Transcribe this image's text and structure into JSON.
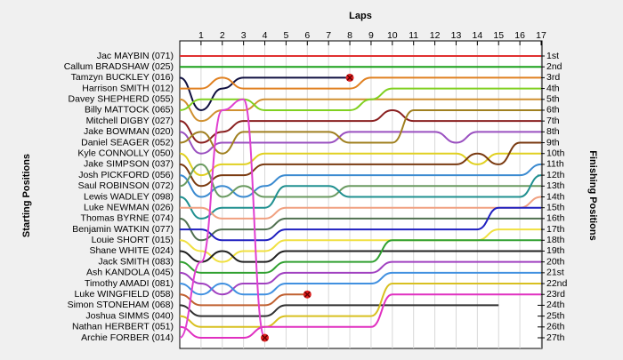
{
  "chart_data": {
    "type": "lap",
    "xlabel": "Laps",
    "ylabel": "Starting Positions",
    "y2label": "Finishing Positions",
    "x": [
      0,
      1,
      2,
      3,
      4,
      5,
      6,
      7,
      8,
      9,
      10,
      11,
      12,
      13,
      14,
      15,
      16,
      17
    ],
    "xlim": [
      0,
      17
    ],
    "xticks": [
      1,
      2,
      3,
      4,
      5,
      6,
      7,
      8,
      9,
      10,
      11,
      12,
      13,
      14,
      15,
      16,
      17
    ],
    "ylim": [
      1,
      27
    ],
    "yticks": [
      {
        "value": 1,
        "label": "1st"
      },
      {
        "value": 2,
        "label": "2nd"
      },
      {
        "value": 3,
        "label": "3rd"
      },
      {
        "value": 4,
        "label": "4th"
      },
      {
        "value": 5,
        "label": "5th"
      },
      {
        "value": 6,
        "label": "6th"
      },
      {
        "value": 7,
        "label": "7th"
      },
      {
        "value": 8,
        "label": "8th"
      },
      {
        "value": 9,
        "label": "9th"
      },
      {
        "value": 10,
        "label": "10th"
      },
      {
        "value": 11,
        "label": "11th"
      },
      {
        "value": 12,
        "label": "12th"
      },
      {
        "value": 13,
        "label": "13th"
      },
      {
        "value": 14,
        "label": "14th"
      },
      {
        "value": 15,
        "label": "15th"
      },
      {
        "value": 16,
        "label": "16th"
      },
      {
        "value": 17,
        "label": "17th"
      },
      {
        "value": 18,
        "label": "18th"
      },
      {
        "value": 19,
        "label": "19th"
      },
      {
        "value": 20,
        "label": "20th"
      },
      {
        "value": 21,
        "label": "21st"
      },
      {
        "value": 22,
        "label": "22nd"
      },
      {
        "value": 23,
        "label": "23rd"
      },
      {
        "value": 24,
        "label": "24th"
      },
      {
        "value": 25,
        "label": "25th"
      },
      {
        "value": 26,
        "label": "26th"
      },
      {
        "value": 27,
        "label": "27th"
      }
    ],
    "grid": true,
    "series": [
      {
        "name": "Jac MAYBIN (071)",
        "color": "#e03030",
        "values": [
          1,
          1,
          1,
          1,
          1,
          1,
          1,
          1,
          1,
          1,
          1,
          1,
          1,
          1,
          1,
          1,
          1,
          1
        ]
      },
      {
        "name": "Callum BRADSHAW (025)",
        "color": "#1aa01a",
        "values": [
          2,
          2,
          2,
          2,
          2,
          2,
          2,
          2,
          2,
          2,
          2,
          2,
          2,
          2,
          2,
          2,
          2,
          2
        ]
      },
      {
        "name": "Tamzyn BUCKLEY (016)",
        "color": "#101040",
        "retired": true,
        "values": [
          3,
          6,
          4,
          3,
          3,
          3,
          3,
          3,
          3,
          null,
          null,
          null,
          null,
          null,
          null,
          null,
          null,
          null
        ]
      },
      {
        "name": "Harrison SMITH (012)",
        "color": "#e08020",
        "values": [
          4,
          4,
          3,
          4,
          4,
          4,
          4,
          4,
          4,
          3,
          3,
          3,
          3,
          3,
          3,
          3,
          3,
          3
        ]
      },
      {
        "name": "Davey SHEPHERD (055)",
        "color": "#d09030",
        "values": [
          5,
          7,
          6,
          6,
          5,
          5,
          5,
          5,
          5,
          5,
          5,
          5,
          5,
          5,
          5,
          5,
          5,
          5
        ]
      },
      {
        "name": "Billy MATTOCK (065)",
        "color": "#80d020",
        "values": [
          6,
          5,
          5,
          5,
          6,
          6,
          6,
          6,
          6,
          5,
          4,
          4,
          4,
          4,
          4,
          4,
          4,
          4
        ]
      },
      {
        "name": "Mitchell DIGBY (027)",
        "color": "#8a2020",
        "values": [
          7,
          9,
          8,
          7,
          7,
          7,
          7,
          7,
          7,
          7,
          6,
          7,
          7,
          7,
          7,
          7,
          7,
          7
        ]
      },
      {
        "name": "Jake BOWMAN (020)",
        "color": "#9a50c0",
        "values": [
          8,
          10,
          9,
          9,
          9,
          9,
          9,
          9,
          8,
          8,
          8,
          8,
          8,
          9,
          8,
          8,
          8,
          8
        ]
      },
      {
        "name": "Daniel SEAGER (052)",
        "color": "#a08020",
        "values": [
          9,
          8,
          10,
          8,
          8,
          8,
          8,
          8,
          9,
          9,
          9,
          6,
          6,
          6,
          6,
          6,
          6,
          6
        ]
      },
      {
        "name": "Kyle CONNOLLY (050)",
        "color": "#e0d020",
        "values": [
          10,
          12,
          11,
          11,
          10,
          10,
          10,
          10,
          10,
          10,
          10,
          10,
          10,
          10,
          11,
          10,
          10,
          10
        ]
      },
      {
        "name": "Jake SIMPSON (037)",
        "color": "#7a3a10",
        "values": [
          11,
          13,
          12,
          12,
          11,
          11,
          11,
          11,
          11,
          11,
          11,
          11,
          11,
          11,
          10,
          11,
          9,
          9
        ]
      },
      {
        "name": "Josh PICKFORD (056)",
        "color": "#3a8ad0",
        "values": [
          12,
          14,
          13,
          14,
          13,
          12,
          12,
          12,
          12,
          12,
          12,
          12,
          12,
          12,
          12,
          12,
          12,
          11
        ]
      },
      {
        "name": "Saul ROBINSON (072)",
        "color": "#6a9a60",
        "values": [
          13,
          11,
          14,
          13,
          14,
          14,
          14,
          14,
          13,
          13,
          13,
          13,
          13,
          13,
          13,
          13,
          13,
          13
        ]
      },
      {
        "name": "Lewis WADLEY (098)",
        "color": "#209090",
        "values": [
          14,
          16,
          15,
          15,
          15,
          13,
          13,
          13,
          14,
          14,
          14,
          14,
          14,
          14,
          14,
          14,
          14,
          12
        ]
      },
      {
        "name": "Luke NEWMAN (026)",
        "color": "#f0a080",
        "values": [
          15,
          15,
          16,
          16,
          16,
          15,
          15,
          15,
          15,
          15,
          15,
          15,
          15,
          15,
          15,
          15,
          15,
          14
        ]
      },
      {
        "name": "Thomas BYRNE (074)",
        "color": "#507050",
        "values": [
          16,
          18,
          17,
          17,
          17,
          16,
          16,
          16,
          16,
          16,
          16,
          16,
          16,
          16,
          16,
          16,
          16,
          16
        ]
      },
      {
        "name": "Benjamin WATKIN (077)",
        "color": "#2020c0",
        "values": [
          17,
          17,
          18,
          18,
          18,
          17,
          17,
          17,
          17,
          17,
          17,
          17,
          17,
          17,
          17,
          15,
          15,
          15
        ]
      },
      {
        "name": "Louie SHORT (015)",
        "color": "#f0e040",
        "values": [
          18,
          19,
          20,
          19,
          19,
          18,
          18,
          18,
          18,
          18,
          18,
          18,
          18,
          18,
          18,
          17,
          17,
          17
        ]
      },
      {
        "name": "Shane WHITE (024)",
        "color": "#202020",
        "values": [
          19,
          20,
          19,
          20,
          20,
          19,
          19,
          19,
          19,
          19,
          19,
          19,
          19,
          19,
          19,
          19,
          19,
          19
        ]
      },
      {
        "name": "Jack SMITH (083)",
        "color": "#30a030",
        "values": [
          20,
          21,
          21,
          21,
          21,
          20,
          20,
          20,
          20,
          20,
          18,
          18,
          18,
          18,
          18,
          18,
          18,
          18
        ]
      },
      {
        "name": "Ash KANDOLA (045)",
        "color": "#a040c0",
        "values": [
          21,
          22,
          23,
          22,
          22,
          21,
          21,
          21,
          21,
          21,
          20,
          20,
          20,
          20,
          20,
          20,
          20,
          20
        ]
      },
      {
        "name": "Timothy AMADI (081)",
        "color": "#4090e0",
        "values": [
          22,
          23,
          22,
          23,
          23,
          22,
          22,
          22,
          22,
          22,
          21,
          21,
          21,
          21,
          21,
          21,
          21,
          21
        ]
      },
      {
        "name": "Luke WINGFIELD (058)",
        "color": "#c06030",
        "retired": true,
        "values": [
          23,
          24,
          24,
          24,
          24,
          23,
          23,
          null,
          null,
          null,
          null,
          null,
          null,
          null,
          null,
          null,
          null,
          null
        ]
      },
      {
        "name": "Simon STONEHAM (068)",
        "color": "#303030",
        "values": [
          24,
          25,
          25,
          25,
          25,
          24,
          24,
          24,
          24,
          24,
          24,
          24,
          24,
          24,
          24,
          24,
          null,
          null
        ]
      },
      {
        "name": "Joshua SIMMS (040)",
        "color": "#d8c020",
        "values": [
          25,
          26,
          26,
          26,
          26,
          25,
          25,
          25,
          25,
          25,
          22,
          22,
          22,
          22,
          22,
          22,
          22,
          22
        ]
      },
      {
        "name": "Nathan HERBERT (051)",
        "color": "#e030c0",
        "values": [
          26,
          27,
          27,
          27,
          26,
          26,
          26,
          26,
          26,
          26,
          23,
          23,
          23,
          23,
          23,
          23,
          23,
          23
        ]
      },
      {
        "name": "Archie FORBER (014)",
        "color": "#e040d0",
        "retired": true,
        "values": [
          27,
          20,
          6,
          5,
          27,
          null,
          null,
          null,
          null,
          null,
          null,
          null,
          null,
          null,
          null,
          null,
          null,
          null
        ]
      }
    ]
  }
}
